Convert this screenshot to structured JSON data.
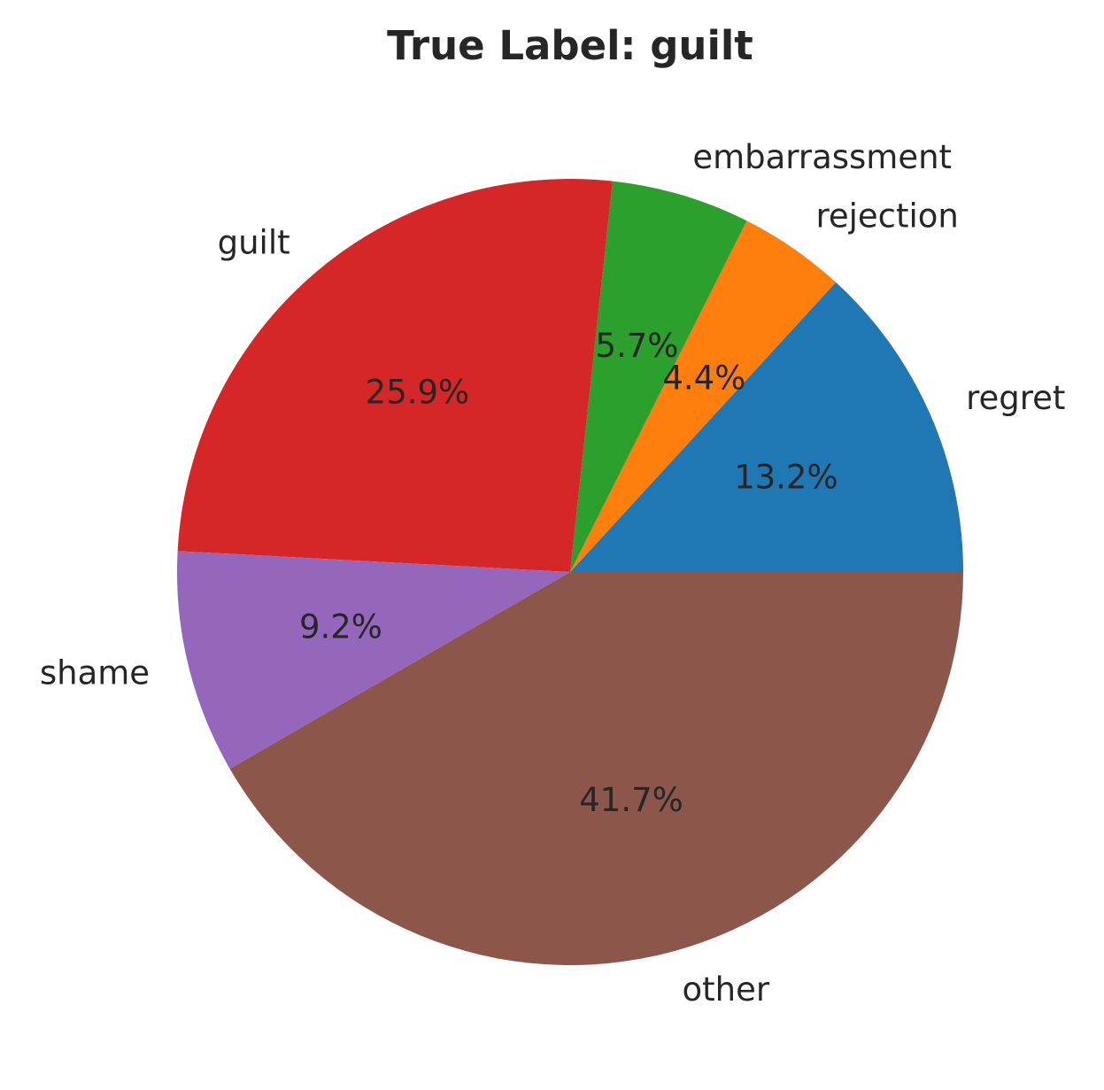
{
  "chart_data": {
    "type": "pie",
    "title": "True Label: guilt",
    "slices": [
      {
        "label": "regret",
        "value": 13.2,
        "pct_text": "13.2%",
        "color": "#1f77b4"
      },
      {
        "label": "rejection",
        "value": 4.4,
        "pct_text": "4.4%",
        "color": "#ff7f0e"
      },
      {
        "label": "embarrassment",
        "value": 5.7,
        "pct_text": "5.7%",
        "color": "#2ca02c"
      },
      {
        "label": "guilt",
        "value": 25.9,
        "pct_text": "25.9%",
        "color": "#d62728"
      },
      {
        "label": "shame",
        "value": 9.2,
        "pct_text": "9.2%",
        "color": "#9467bd"
      },
      {
        "label": "other",
        "value": 41.7,
        "pct_text": "41.7%",
        "color": "#8c564b"
      }
    ],
    "start_angle_deg": 0,
    "direction": "counterclockwise",
    "legend": "none"
  }
}
